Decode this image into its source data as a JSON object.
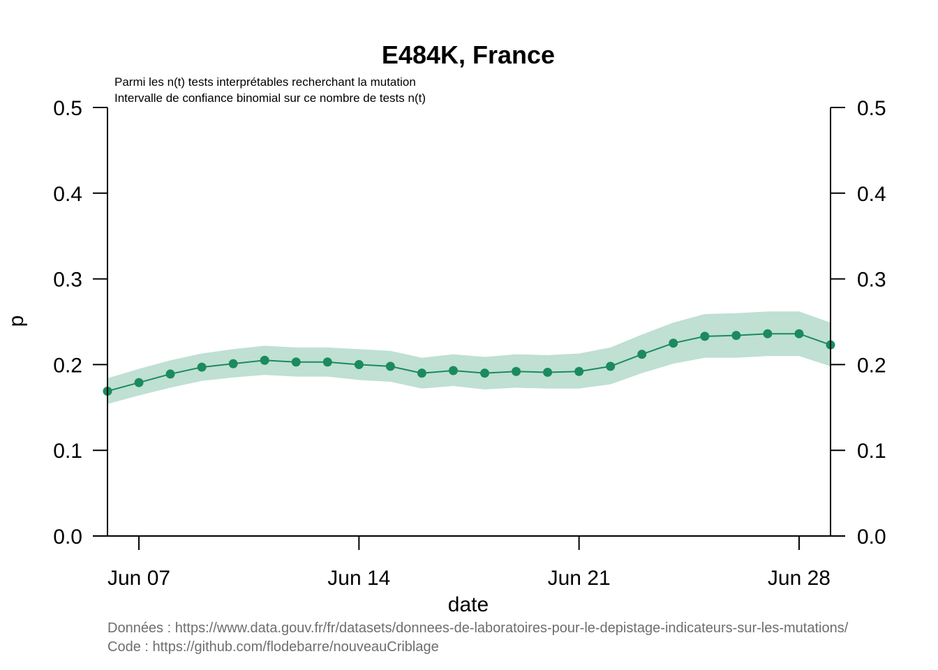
{
  "chart_data": {
    "type": "line",
    "title": "E484K, France",
    "subtitles": [
      "Parmi les n(t) tests interprétables recherchant la mutation",
      "Intervalle de confiance binomial sur ce nombre de tests n(t)"
    ],
    "xlabel": "date",
    "ylabel": "p",
    "ylim": [
      0,
      0.5
    ],
    "yticks": [
      "0.0",
      "0.1",
      "0.2",
      "0.3",
      "0.4",
      "0.5"
    ],
    "xticks": [
      {
        "date": "2021-06-07",
        "label": "Jun 07"
      },
      {
        "date": "2021-06-14",
        "label": "Jun 14"
      },
      {
        "date": "2021-06-21",
        "label": "Jun 21"
      },
      {
        "date": "2021-06-28",
        "label": "Jun 28"
      }
    ],
    "xlim": [
      "2021-06-06",
      "2021-06-29"
    ],
    "grid": false,
    "series": [
      {
        "color": "#1b8a5f",
        "band_color": "#bfe0d3",
        "x": [
          "2021-06-06",
          "2021-06-07",
          "2021-06-08",
          "2021-06-09",
          "2021-06-10",
          "2021-06-11",
          "2021-06-12",
          "2021-06-13",
          "2021-06-14",
          "2021-06-15",
          "2021-06-16",
          "2021-06-17",
          "2021-06-18",
          "2021-06-19",
          "2021-06-20",
          "2021-06-21",
          "2021-06-22",
          "2021-06-23",
          "2021-06-24",
          "2021-06-25",
          "2021-06-26",
          "2021-06-27",
          "2021-06-28",
          "2021-06-29"
        ],
        "y": [
          0.169,
          0.179,
          0.189,
          0.197,
          0.201,
          0.205,
          0.203,
          0.203,
          0.2,
          0.198,
          0.19,
          0.193,
          0.19,
          0.192,
          0.191,
          0.192,
          0.198,
          0.212,
          0.225,
          0.233,
          0.234,
          0.236,
          0.236,
          0.223
        ],
        "lower": [
          0.154,
          0.164,
          0.173,
          0.181,
          0.185,
          0.188,
          0.186,
          0.186,
          0.182,
          0.18,
          0.172,
          0.175,
          0.171,
          0.173,
          0.172,
          0.172,
          0.177,
          0.19,
          0.201,
          0.208,
          0.208,
          0.21,
          0.21,
          0.198
        ],
        "upper": [
          0.184,
          0.195,
          0.205,
          0.213,
          0.218,
          0.222,
          0.22,
          0.22,
          0.218,
          0.216,
          0.208,
          0.212,
          0.209,
          0.212,
          0.211,
          0.213,
          0.22,
          0.235,
          0.249,
          0.259,
          0.26,
          0.262,
          0.262,
          0.249
        ]
      }
    ]
  },
  "source": {
    "data_line": "Données : https://www.data.gouv.fr/fr/datasets/donnees-de-laboratoires-pour-le-depistage-indicateurs-sur-les-mutations/",
    "code_line": "Code : https://github.com/flodebarre/nouveauCriblage"
  }
}
